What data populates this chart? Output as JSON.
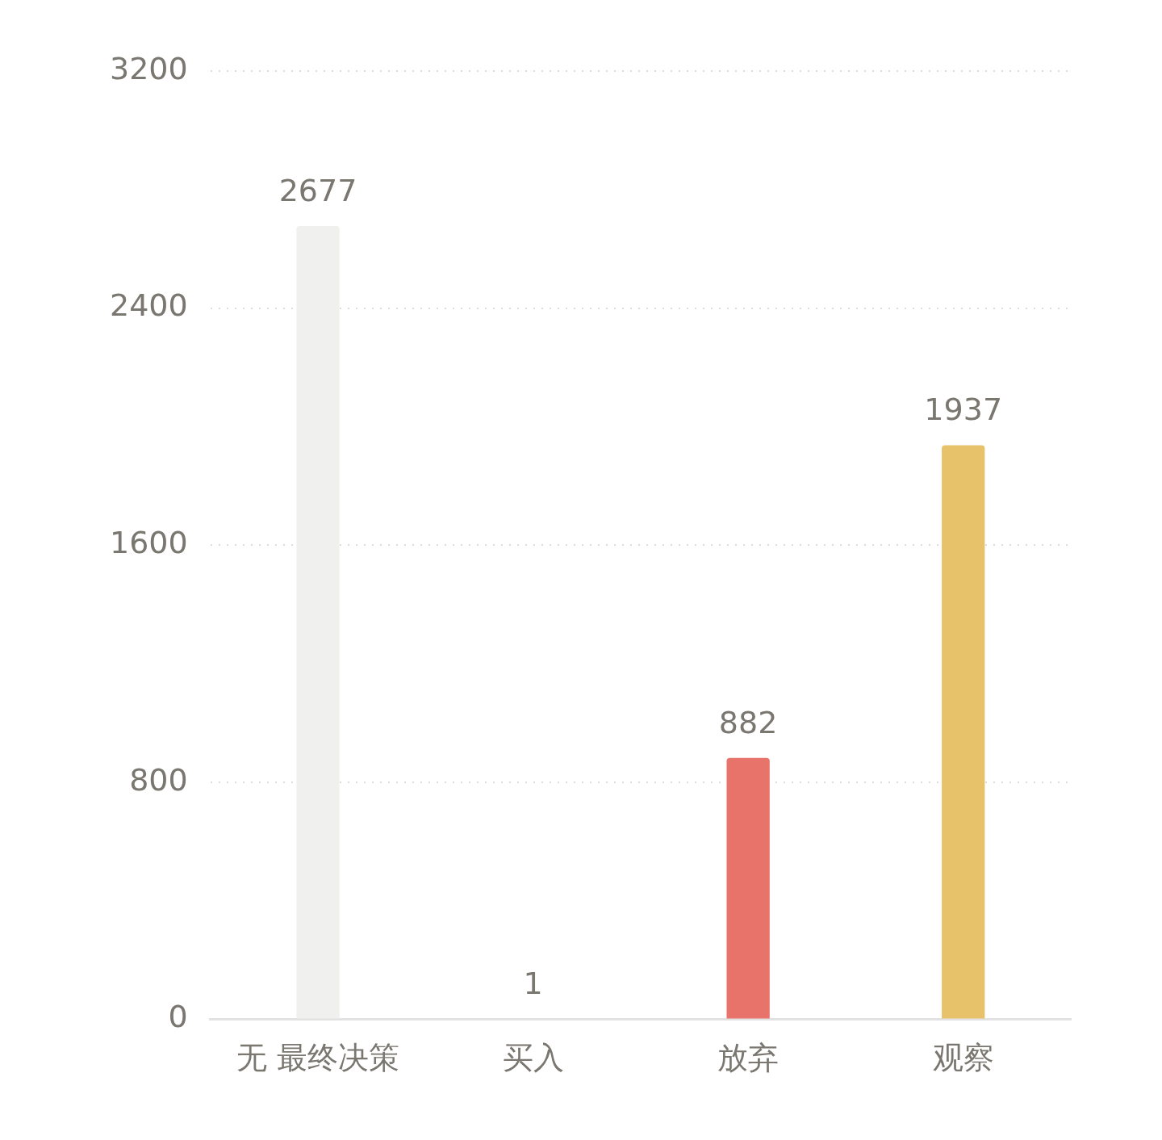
{
  "chart_data": {
    "type": "bar",
    "categories": [
      "无 最终决策",
      "买入",
      "放弃",
      "观察"
    ],
    "values": [
      2677,
      1,
      882,
      1937
    ],
    "colors": [
      "#f0f0ee",
      "#e0e0e0",
      "#e8736a",
      "#e8c26b"
    ],
    "ylim": [
      0,
      3200
    ],
    "yticks": [
      0,
      800,
      1600,
      2400,
      3200
    ],
    "grid": "y",
    "data_labels": true,
    "legend": false
  }
}
